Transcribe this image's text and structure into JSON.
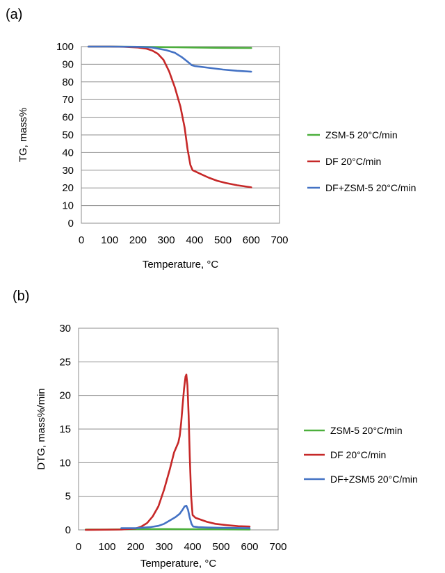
{
  "chart_data": [
    {
      "panel_label": "(a)",
      "type": "line",
      "xlabel": "Temperature, °C",
      "ylabel": "TG, mass%",
      "xlim": [
        0,
        700
      ],
      "ylim": [
        0,
        100
      ],
      "x_ticks": [
        "0",
        "100",
        "200",
        "300",
        "400",
        "500",
        "600",
        "700"
      ],
      "y_ticks": [
        "0",
        "10",
        "20",
        "30",
        "40",
        "50",
        "60",
        "70",
        "80",
        "90",
        "100"
      ],
      "grid": "horizontal",
      "legend": "right",
      "series": [
        {
          "name": "ZSM-5 20°C/min",
          "color": "#4caf3c",
          "points": [
            [
              25,
              100
            ],
            [
              100,
              100
            ],
            [
              200,
              99.9
            ],
            [
              300,
              99.7
            ],
            [
              400,
              99.5
            ],
            [
              500,
              99.3
            ],
            [
              600,
              99.2
            ]
          ]
        },
        {
          "name": "DF 20°C/min",
          "color": "#c62828",
          "points": [
            [
              25,
              100
            ],
            [
              100,
              100
            ],
            [
              150,
              99.9
            ],
            [
              200,
              99.5
            ],
            [
              230,
              98.8
            ],
            [
              250,
              97.8
            ],
            [
              270,
              96
            ],
            [
              290,
              92.5
            ],
            [
              310,
              86
            ],
            [
              330,
              77
            ],
            [
              350,
              66
            ],
            [
              365,
              54
            ],
            [
              375,
              42
            ],
            [
              385,
              33
            ],
            [
              393,
              30
            ],
            [
              400,
              29.5
            ],
            [
              420,
              28
            ],
            [
              450,
              25.8
            ],
            [
              480,
              24
            ],
            [
              510,
              22.8
            ],
            [
              550,
              21.5
            ],
            [
              600,
              20.3
            ]
          ]
        },
        {
          "name": "DF+ZSM-5 20°C/min",
          "color": "#4472c4",
          "points": [
            [
              25,
              100
            ],
            [
              100,
              100
            ],
            [
              200,
              99.9
            ],
            [
              250,
              99.5
            ],
            [
              300,
              98
            ],
            [
              330,
              96.5
            ],
            [
              355,
              94
            ],
            [
              375,
              91.5
            ],
            [
              390,
              89.5
            ],
            [
              400,
              89
            ],
            [
              450,
              88
            ],
            [
              500,
              87
            ],
            [
              550,
              86.3
            ],
            [
              600,
              85.8
            ]
          ]
        }
      ]
    },
    {
      "panel_label": "(b)",
      "type": "line",
      "xlabel": "Temperature, °C",
      "ylabel": "DTG, mass%/min",
      "xlim": [
        0,
        700
      ],
      "ylim": [
        0,
        30
      ],
      "x_ticks": [
        "0",
        "100",
        "200",
        "300",
        "400",
        "500",
        "600",
        "700"
      ],
      "y_ticks": [
        "0",
        "5",
        "10",
        "15",
        "20",
        "25",
        "30"
      ],
      "grid": "horizontal",
      "legend": "right",
      "series": [
        {
          "name": "ZSM-5 20°C/min",
          "color": "#4caf3c",
          "points": [
            [
              25,
              0.05
            ],
            [
              100,
              0.05
            ],
            [
              200,
              0.1
            ],
            [
              300,
              0.12
            ],
            [
              400,
              0.1
            ],
            [
              500,
              0.08
            ],
            [
              600,
              0.05
            ]
          ]
        },
        {
          "name": "DF 20°C/min",
          "color": "#c62828",
          "points": [
            [
              25,
              0
            ],
            [
              150,
              0.05
            ],
            [
              200,
              0.2
            ],
            [
              220,
              0.5
            ],
            [
              240,
              1
            ],
            [
              260,
              2
            ],
            [
              280,
              3.5
            ],
            [
              300,
              6
            ],
            [
              320,
              9
            ],
            [
              335,
              11.5
            ],
            [
              350,
              13
            ],
            [
              355,
              14
            ],
            [
              360,
              16
            ],
            [
              365,
              18.5
            ],
            [
              370,
              21
            ],
            [
              375,
              22.8
            ],
            [
              378,
              23.1
            ],
            [
              382,
              21.5
            ],
            [
              386,
              17
            ],
            [
              390,
              11
            ],
            [
              395,
              5
            ],
            [
              400,
              2.2
            ],
            [
              410,
              1.8
            ],
            [
              430,
              1.5
            ],
            [
              450,
              1.2
            ],
            [
              480,
              0.9
            ],
            [
              520,
              0.7
            ],
            [
              560,
              0.55
            ],
            [
              600,
              0.5
            ]
          ]
        },
        {
          "name": "DF+ZSM5 20°C/min",
          "color": "#4472c4",
          "points": [
            [
              150,
              0.25
            ],
            [
              200,
              0.25
            ],
            [
              250,
              0.4
            ],
            [
              280,
              0.6
            ],
            [
              300,
              0.9
            ],
            [
              320,
              1.4
            ],
            [
              340,
              1.9
            ],
            [
              355,
              2.4
            ],
            [
              365,
              3
            ],
            [
              372,
              3.5
            ],
            [
              378,
              3.6
            ],
            [
              384,
              3
            ],
            [
              390,
              1.8
            ],
            [
              396,
              0.9
            ],
            [
              402,
              0.5
            ],
            [
              420,
              0.4
            ],
            [
              450,
              0.35
            ],
            [
              500,
              0.3
            ],
            [
              550,
              0.28
            ],
            [
              600,
              0.25
            ]
          ]
        }
      ]
    }
  ]
}
